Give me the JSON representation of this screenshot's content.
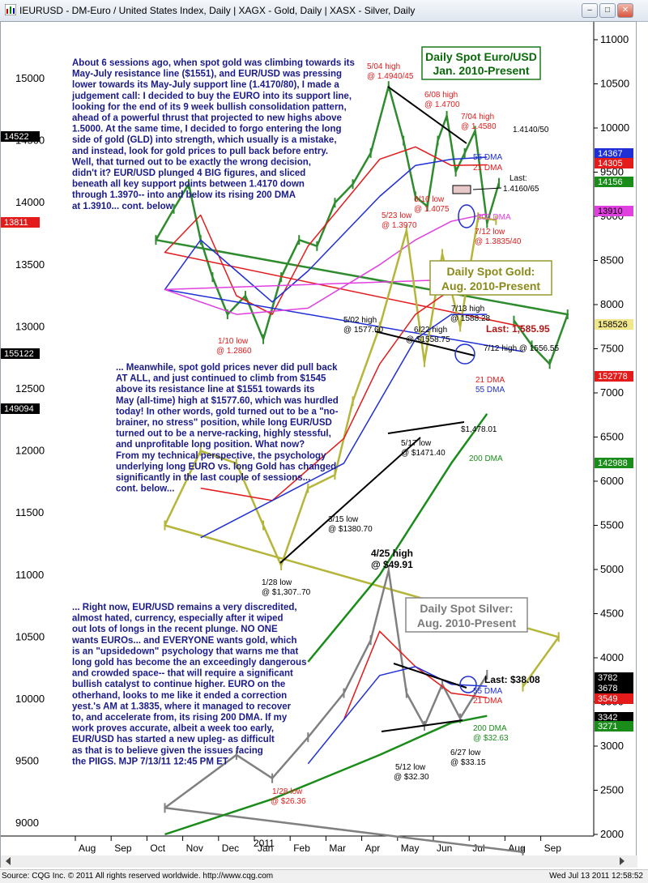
{
  "window": {
    "title": "IEURUSD - DM-Euro / United States Index, Daily  |  XAGX - Gold, Daily  |  XASX - Silver, Daily"
  },
  "footer": {
    "left": "Source: CQG Inc. © 2011 All rights reserved worldwide. http://www.cqg.com",
    "right": "Wed Jul 13 2011 12:58:52"
  },
  "colors": {
    "eur_bars": "#2e8b2e",
    "gold_bars": "#b5b53a",
    "silver_bars": "#808080",
    "dma21": "#e31b1b",
    "dma55": "#1f2fd6",
    "dma200_eur": "#e040e0",
    "dma200_metals": "#1a8c1a",
    "note_text": "#1a1a8c",
    "annotation_red": "#e31b1b"
  },
  "chart_data": {
    "type": "line",
    "x_months": [
      "Aug",
      "Sep",
      "Oct",
      "Nov",
      "Dec",
      "Jan",
      "Feb",
      "Mar",
      "Apr",
      "May",
      "Jun",
      "Jul",
      "Aug",
      "Sep"
    ],
    "year_label": "2011",
    "left_axis_ticks": [
      "15000",
      "14500",
      "14000",
      "13500",
      "13000",
      "12500",
      "12000",
      "11500",
      "11000",
      "10500",
      "10000",
      "9500",
      "9000"
    ],
    "right_axis_ticks": [
      "11000",
      "10500",
      "10000",
      "9500",
      "9000",
      "8500",
      "8000",
      "7500",
      "7000",
      "6500",
      "6000",
      "5500",
      "5000",
      "4500",
      "4000",
      "3500",
      "3000",
      "2500",
      "2000"
    ],
    "panels": [
      {
        "name": "Daily Spot Euro/USD",
        "subtitle": "Jan. 2010-Present",
        "series": [
          {
            "name": "EUR/USD",
            "points": [
              [
                "Aug",
                13050
              ],
              [
                "Aug",
                12850
              ],
              [
                "Sep",
                12700
              ],
              [
                "Sep",
                13100
              ],
              [
                "Oct",
                13700
              ],
              [
                "Oct",
                13950
              ],
              [
                "Nov",
                14150
              ],
              [
                "Nov",
                13700
              ],
              [
                "Nov",
                13400
              ],
              [
                "Dec",
                13100
              ],
              [
                "Dec",
                13250
              ],
              [
                "Jan",
                12900
              ],
              [
                "Jan",
                13400
              ],
              [
                "Feb",
                13700
              ],
              [
                "Feb",
                13650
              ],
              [
                "Mar",
                14000
              ],
              [
                "Mar",
                14150
              ],
              [
                "Apr",
                14400
              ],
              [
                "Apr",
                14940
              ],
              [
                "May",
                14500
              ],
              [
                "May",
                14050
              ],
              [
                "May",
                13970
              ],
              [
                "Jun",
                14500
              ],
              [
                "Jun",
                14700
              ],
              [
                "Jun",
                14250
              ],
              [
                "Jun",
                14400
              ],
              [
                "Jul",
                14580
              ],
              [
                "Jul",
                13835
              ],
              [
                "Jul",
                14160
              ]
            ]
          },
          {
            "name": "21 DMA",
            "points": [
              [
                "Aug",
                13000
              ],
              [
                "Oct",
                13600
              ],
              [
                "Nov",
                13900
              ],
              [
                "Dec",
                13250
              ],
              [
                "Jan",
                13100
              ],
              [
                "Feb",
                13650
              ],
              [
                "Apr",
                14350
              ],
              [
                "May",
                14450
              ],
              [
                "Jun",
                14300
              ],
              [
                "Jul",
                14305
              ]
            ]
          },
          {
            "name": "55 DMA",
            "points": [
              [
                "Aug",
                12800
              ],
              [
                "Oct",
                13300
              ],
              [
                "Nov",
                13700
              ],
              [
                "Dec",
                13450
              ],
              [
                "Jan",
                13200
              ],
              [
                "Feb",
                13450
              ],
              [
                "Apr",
                14050
              ],
              [
                "May",
                14300
              ],
              [
                "Jun",
                14350
              ],
              [
                "Jul",
                14367
              ]
            ]
          },
          {
            "name": "200 DMA",
            "points": [
              [
                "Aug",
                13400
              ],
              [
                "Oct",
                13300
              ],
              [
                "Dec",
                13100
              ],
              [
                "Feb",
                13150
              ],
              [
                "Apr",
                13500
              ],
              [
                "May",
                13700
              ],
              [
                "Jun",
                13850
              ],
              [
                "Jul",
                13910
              ]
            ]
          }
        ],
        "right_tags": [
          "14367",
          "14305",
          "14156",
          "13910"
        ],
        "left_tags": [
          "14522",
          "13811"
        ]
      },
      {
        "name": "Daily Spot Gold:",
        "subtitle": "Aug. 2010-Present",
        "series": [
          {
            "name": "Gold",
            "points": [
              [
                "Aug",
                1210
              ],
              [
                "Sep",
                1250
              ],
              [
                "Oct",
                1340
              ],
              [
                "Nov",
                1400
              ],
              [
                "Dec",
                1390
              ],
              [
                "Jan",
                1340
              ],
              [
                "Jan",
                1307.7
              ],
              [
                "Feb",
                1370
              ],
              [
                "Mar",
                1380.7
              ],
              [
                "Mar",
                1440
              ],
              [
                "Apr",
                1500
              ],
              [
                "May",
                1577.6
              ],
              [
                "May",
                1471.4
              ],
              [
                "Jun",
                1558.75
              ],
              [
                "Jun",
                1500
              ],
              [
                "Jul",
                1588.28
              ],
              [
                "Jul",
                1585.95
              ]
            ]
          },
          {
            "name": "21 DMA",
            "points": [
              [
                "Nov",
                1370
              ],
              [
                "Jan",
                1360
              ],
              [
                "Mar",
                1410
              ],
              [
                "Apr",
                1470
              ],
              [
                "May",
                1510
              ],
              [
                "Jun",
                1530
              ],
              [
                "Jul",
                1527.78
              ]
            ]
          },
          {
            "name": "55 DMA",
            "points": [
              [
                "Nov",
                1330
              ],
              [
                "Jan",
                1360
              ],
              [
                "Mar",
                1390
              ],
              [
                "Apr",
                1440
              ],
              [
                "May",
                1490
              ],
              [
                "Jun",
                1510
              ],
              [
                "Jul",
                1510
              ]
            ]
          },
          {
            "name": "200 DMA",
            "points": [
              [
                "Feb",
                1230
              ],
              [
                "Apr",
                1300
              ],
              [
                "Jun",
                1390
              ],
              [
                "Jul",
                1429.88
              ]
            ]
          }
        ],
        "right_tags": [
          "158526",
          "152778",
          "142988"
        ],
        "left_tags": [
          "155122",
          "149094"
        ]
      },
      {
        "name": "Daily Spot Silver:",
        "subtitle": "Aug. 2010-Present",
        "series": [
          {
            "name": "Silver",
            "points": [
              [
                "Aug",
                18
              ],
              [
                "Oct",
                23
              ],
              [
                "Dec",
                29
              ],
              [
                "Jan",
                26.36
              ],
              [
                "Feb",
                31
              ],
              [
                "Mar",
                36
              ],
              [
                "Apr",
                42
              ],
              [
                "Apr",
                49.91
              ],
              [
                "May",
                36
              ],
              [
                "May",
                32.3
              ],
              [
                "Jun",
                37
              ],
              [
                "Jun",
                33.15
              ],
              [
                "Jul",
                38.08
              ]
            ]
          },
          {
            "name": "21 DMA",
            "points": [
              [
                "Mar",
                33
              ],
              [
                "Apr",
                43
              ],
              [
                "May",
                39
              ],
              [
                "Jun",
                36
              ],
              [
                "Jul",
                35.49
              ]
            ]
          },
          {
            "name": "55 DMA",
            "points": [
              [
                "Feb",
                28
              ],
              [
                "Apr",
                38
              ],
              [
                "May",
                39
              ],
              [
                "Jun",
                37
              ],
              [
                "Jul",
                36.78
              ]
            ]
          },
          {
            "name": "200 DMA",
            "points": [
              [
                "Oct",
                20
              ],
              [
                "Jan",
                24
              ],
              [
                "Apr",
                29
              ],
              [
                "Jun",
                32.63
              ],
              [
                "Jul",
                33.42
              ]
            ]
          }
        ],
        "right_tags": [
          "3782",
          "3678",
          "3549",
          "3342",
          "3271"
        ]
      }
    ]
  },
  "annotations": {
    "eur": {
      "h_0504": "5/04 high",
      "h_0504_val": "@ 1.4940/45",
      "h_0608": "6/08 high",
      "h_0608_val": "@ 1.4700",
      "h_0704": "7/04 high",
      "h_0704_val": "@ 1.4580",
      "lvl_41405": "1.4140/50",
      "dma55": "55 DMA",
      "dma21": "21 DMA",
      "last": "Last:",
      "last_val": "1.4160/65",
      "l_0616": "6/16 low",
      "l_0616_val": "@ 1.4075",
      "l_0523": "5/23 low",
      "l_0523_val": "@ 1.3970",
      "dma200": "200 DMA",
      "l_0712": "7/12 low",
      "l_0712_val": "@ 1.3835/40",
      "l_0110": "1/10 low",
      "l_0110_val": "@ 1.2860"
    },
    "gold": {
      "h_0502": "5/02 high",
      "h_0502_val": "@ 1577.60",
      "h_0622": "6/22 high",
      "h_0622_val": "@ $1558.75",
      "h_0713": "7/13 high",
      "h_0713_val": "@ 1588.28",
      "last": "Last: 1,585.95",
      "h_0712": "7/12 high @ 1556.55",
      "dma21": "21 DMA",
      "dma55": "55 DMA",
      "lvl_1478": "$1,478.01",
      "l_0517": "5/17 low",
      "l_0517_val": "@ $1471.40",
      "dma200": "200 DMA",
      "l_0315": "3/15 low",
      "l_0315_val": "@ $1380.70",
      "l_0128": "1/28 low",
      "l_0128_val": "@ $1,307..70"
    },
    "silver": {
      "h_0425": "4/25 high",
      "h_0425_val": "@ $49.91",
      "last": "Last: $38.08",
      "dma55": "55 DMA",
      "dma21": "21 DMA",
      "dma200": "200 DMA",
      "dma200_val": "@ $32.63",
      "l_0627": "6/27 low",
      "l_0627_val": "@ $33.15",
      "l_0512": "5/12 low",
      "l_0512_val": "@ $32.30",
      "l_0128": "1/28 low",
      "l_0128_val": "@ $26.36"
    }
  },
  "notes": {
    "note1": [
      "About 6 sessions ago, when spot gold was climbing towards its",
      "May-July resistance line ($1551), and EUR/USD was pressing",
      "lower towards its May-July support line (1.4170/80), I made a",
      "judgement call: I decided to buy the EURO into its support line,",
      "looking for the end of its 9 week bullish consolidation pattern,",
      "ahead of a powerful thrust that projected to new highs above",
      "1.5000.  At the same time, I decided to forgo entering the long",
      "side of gold (GLD) into strength, which usually is a mistake,",
      "and instead, look for gold prices to pull back before entry.",
      "Well, that turned out to be exactly the wrong decision,",
      "didn't it? EUR/USD plunged 4 BIG figures, and sliced",
      "beneath all key support points between 1.4170 down",
      "through 1.3970-- into and below its rising 200 DMA",
      "at 1.3910... cont. below"
    ],
    "note2": [
      "... Meanwhile, spot gold prices never did pull back",
      "AT ALL, and just continued to climb from $1545",
      "above its resistance line at $1551 towards its",
      "May (all-time) high at $1577.60, which was hurdled",
      "today!  In other words, gold turned out to be a \"no-",
      "brainer, no stress\" position, while long EUR/USD",
      "turned out to be a nerve-racking, highly stessful,",
      "and unprofitable long position.  What now?",
      "From my technical perspective, the psychology",
      "underlying long EURO vs. long Gold has changed",
      "significantly in the last couple of sessions...",
      "cont. below..."
    ],
    "note3": [
      "... Right now, EUR/USD remains a very discredited,",
      "almost hated, currency, especially after it wiped",
      "out lots of longs in the recent plunge. NO ONE",
      "wants EUROs... and EVERYONE wants gold, which",
      "is an \"upsidedown\" psychology that warns me that",
      "long gold has become the an exceedingly dangerous",
      "and crowded space-- that will require a significant",
      "bullish catalyst to continue higher. EURO on the",
      "otherhand, looks to me like it ended a correction",
      "yest.'s AM at 1.3835, where it managed to recover",
      "to, and accelerate from, its rising 200 DMA. If my",
      "work proves accurate, albeit a week too early,",
      "EUR/USD has started a new upleg- as difficult",
      "as that is to believe given the issues facing",
      "the PIIGS. MJP 7/13/11  12:45 PM ET"
    ]
  }
}
